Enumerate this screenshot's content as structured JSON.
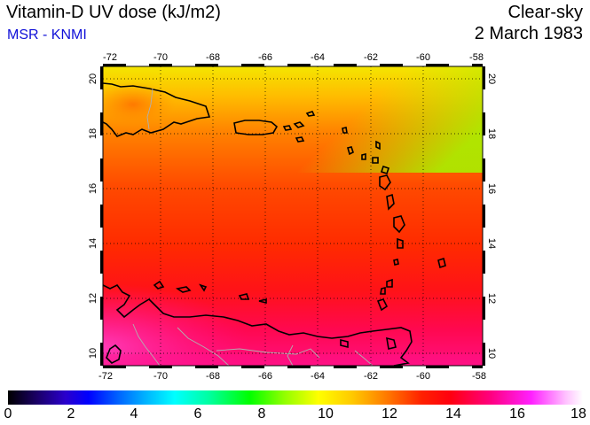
{
  "header": {
    "title": "Vitamin-D UV dose (kJ/m2)",
    "source": "MSR - KNMI",
    "sky_condition": "Clear-sky",
    "date": "2 March 1983"
  },
  "map": {
    "lon_ticks": [
      "-72",
      "-70",
      "-68",
      "-66",
      "-64",
      "-62",
      "-60",
      "-58"
    ],
    "lat_ticks": [
      "20",
      "18",
      "16",
      "14",
      "12",
      "10"
    ]
  },
  "colorbar": {
    "labels": [
      "0",
      "2",
      "4",
      "6",
      "8",
      "10",
      "12",
      "14",
      "16",
      "18"
    ]
  }
}
